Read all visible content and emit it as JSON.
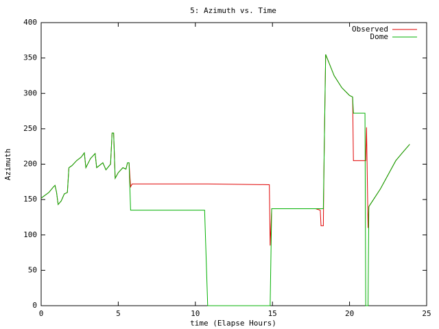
{
  "chart_data": {
    "type": "line",
    "title": "5: Azimuth vs. Time",
    "x_label": "time (Elapse Hours)",
    "y_label": "Azimuth",
    "x": [
      0,
      0.5,
      0.8,
      0.9,
      1.0,
      1.1,
      1.3,
      1.5,
      1.7,
      1.8,
      2.0,
      2.3,
      2.6,
      2.8,
      2.9,
      3.2,
      3.5,
      3.6,
      4.0,
      4.2,
      4.5,
      4.6,
      4.7,
      4.8,
      5.0,
      5.3,
      5.5,
      5.6,
      5.7,
      5.8,
      5.9,
      10.6,
      10.8,
      14.8,
      14.85,
      14.95,
      17.8,
      18.1,
      18.15,
      18.3,
      18.35,
      18.45,
      19.0,
      19.5,
      20.0,
      20.2,
      20.25,
      21.0,
      21.05,
      21.1,
      21.2,
      21.25,
      21.4,
      22.0,
      22.5,
      23.0,
      23.5,
      23.9
    ],
    "series": [
      {
        "name": "Observed",
        "color": "#e00000",
        "values": [
          152,
          160,
          168,
          170,
          160,
          143,
          148,
          158,
          160,
          195,
          198,
          205,
          210,
          216,
          195,
          208,
          215,
          195,
          202,
          192,
          200,
          244,
          244,
          180,
          188,
          195,
          193,
          202,
          202,
          168,
          172,
          172,
          172,
          171,
          85,
          137,
          137,
          135,
          113,
          113,
          210,
          355,
          325,
          308,
          297,
          295,
          205,
          205,
          205,
          252,
          110,
          140,
          145,
          165,
          185,
          205,
          218,
          228
        ]
      },
      {
        "name": "Dome",
        "color": "#00b000",
        "values": [
          152,
          160,
          168,
          170,
          160,
          143,
          148,
          158,
          160,
          195,
          198,
          205,
          210,
          216,
          195,
          208,
          215,
          195,
          202,
          192,
          200,
          244,
          244,
          180,
          188,
          195,
          193,
          202,
          202,
          135,
          135,
          135,
          0,
          0,
          0,
          137,
          137,
          137,
          137,
          137,
          210,
          355,
          325,
          308,
          297,
          295,
          272,
          272,
          0,
          0,
          0,
          140,
          145,
          165,
          185,
          205,
          218,
          228
        ]
      }
    ],
    "xlim": [
      0,
      25
    ],
    "xticks": [
      0,
      5,
      10,
      15,
      20,
      25
    ],
    "ylim": [
      0,
      400
    ],
    "yticks": [
      0,
      50,
      100,
      150,
      200,
      250,
      300,
      350,
      400
    ],
    "legend": "top-right"
  }
}
